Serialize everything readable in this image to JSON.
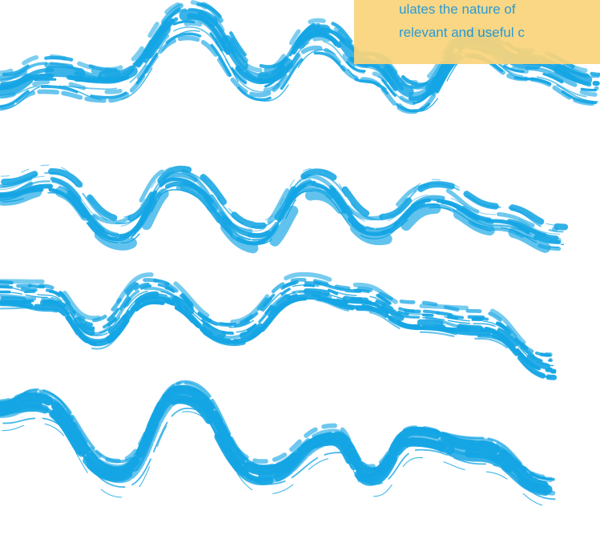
{
  "callout": {
    "lines": [
      "ulates the nature of",
      "relevant and useful c"
    ]
  }
}
